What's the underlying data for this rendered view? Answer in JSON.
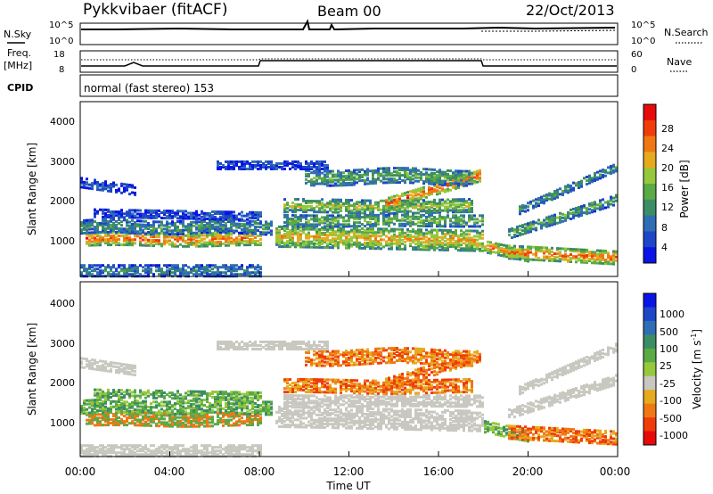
{
  "header": {
    "title": "Pykkvibaer (fitACF)",
    "beam": "Beam 00",
    "date": "22/Oct/2013"
  },
  "status_panels": {
    "nsky_label": "N.Sky",
    "nsearch_label": "N.Search",
    "freq_label_1": "Freq.",
    "freq_label_2": "[MHz]",
    "nave_label": "Nave",
    "cpid_label": "CPID",
    "cpid_text": "normal (fast stereo) 153",
    "noise_left_ticks": [
      "10^5",
      "10^0"
    ],
    "noise_right_ticks": [
      "10^5",
      "10^0"
    ],
    "freq_left_ticks": [
      "18",
      "8"
    ],
    "freq_right_ticks": [
      "60",
      "0"
    ]
  },
  "colors": {
    "power_scale": [
      "#0a14e6",
      "#1e46c8",
      "#2f6eb4",
      "#3c8c64",
      "#5aaa46",
      "#96c83c",
      "#e6aa1e",
      "#f07814",
      "#f03c0a",
      "#e60a0a"
    ],
    "velocity_scale": [
      "#0a14e6",
      "#1e46c8",
      "#2f6eb4",
      "#3c8c64",
      "#5aaa46",
      "#96c83c",
      "#c8c8c0",
      "#e6aa1e",
      "#f07814",
      "#f03c0a",
      "#e60a0a"
    ],
    "ground_scatter": "#c8c8c0"
  },
  "chart_data": [
    {
      "type": "heatmap",
      "panel": "power",
      "ylabel": "Slant Range [km]",
      "yticks": [
        "1000",
        "2000",
        "3000",
        "4000"
      ],
      "ylim": [
        200,
        4600
      ],
      "xlim": [
        0,
        24
      ],
      "colorbar_label": "Power [dB]",
      "colorbar_ticks": [
        "4",
        "8",
        "12",
        "16",
        "20",
        "24",
        "28"
      ],
      "colorbar_range": [
        0,
        32
      ]
    },
    {
      "type": "heatmap",
      "panel": "velocity",
      "ylabel": "Slant Range [km]",
      "yticks": [
        "1000",
        "2000",
        "3000",
        "4000"
      ],
      "ylim": [
        200,
        4600
      ],
      "xlim": [
        0,
        24
      ],
      "colorbar_label": "Velocity [m s",
      "colorbar_label_sup": "-1",
      "colorbar_label_end": "]",
      "colorbar_ticks": [
        "1000",
        "500",
        "100",
        "25",
        "-25",
        "-100",
        "-500",
        "-1000"
      ]
    }
  ],
  "xaxis": {
    "ticks": [
      "00:00",
      "04:00",
      "08:00",
      "12:00",
      "16:00",
      "20:00",
      "00:00"
    ],
    "tick_hours": [
      0,
      4,
      8,
      12,
      16,
      20,
      24
    ],
    "label": "Time UT"
  }
}
